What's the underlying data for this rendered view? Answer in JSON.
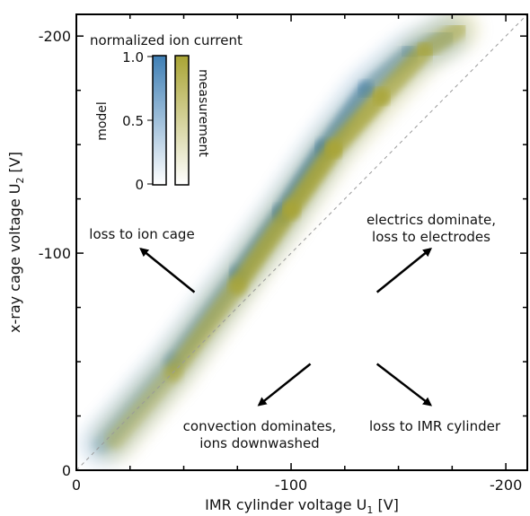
{
  "chart_data": {
    "type": "heatmap",
    "title": "",
    "xlabel": "IMR cylinder voltage U",
    "xlabel_sub": "1",
    "xlabel_unit": " [V]",
    "ylabel": "x-ray cage voltage U",
    "ylabel_sub": "2",
    "ylabel_unit": " [V]",
    "xlim": [
      0,
      -210
    ],
    "ylim": [
      0,
      -210
    ],
    "x_ticks": [
      0,
      -100,
      -200
    ],
    "y_ticks": [
      0,
      -100,
      -200
    ],
    "x_tick_labels": [
      "0",
      "-100",
      "-200"
    ],
    "y_tick_labels": [
      "0",
      "-100",
      "-200"
    ],
    "grid": false,
    "diagonal": {
      "x": [
        0,
        -210
      ],
      "y": [
        0,
        -210
      ],
      "style": "dashed",
      "color": "#9a9a9a"
    },
    "series": [
      {
        "name": "model",
        "color": "#3f7fb5",
        "ridge": [
          {
            "x": -12,
            "y": -12,
            "value": 0.05
          },
          {
            "x": -45,
            "y": -50,
            "value": 0.25
          },
          {
            "x": -75,
            "y": -90,
            "value": 0.55
          },
          {
            "x": -95,
            "y": -118,
            "value": 0.85
          },
          {
            "x": -115,
            "y": -148,
            "value": 0.9
          },
          {
            "x": -135,
            "y": -175,
            "value": 0.6
          },
          {
            "x": -155,
            "y": -192,
            "value": 0.3
          },
          {
            "x": -172,
            "y": -200,
            "value": 0.1
          }
        ]
      },
      {
        "name": "measurement",
        "color": "#a9a434",
        "ridge": [
          {
            "x": -18,
            "y": -14,
            "value": 0.1
          },
          {
            "x": -45,
            "y": -45,
            "value": 0.35
          },
          {
            "x": -75,
            "y": -85,
            "value": 0.7
          },
          {
            "x": -100,
            "y": -120,
            "value": 0.95
          },
          {
            "x": -120,
            "y": -148,
            "value": 0.9
          },
          {
            "x": -142,
            "y": -172,
            "value": 0.75
          },
          {
            "x": -162,
            "y": -193,
            "value": 0.55
          },
          {
            "x": -178,
            "y": -203,
            "value": 0.3
          }
        ]
      }
    ],
    "colorbar": {
      "title": "normalized ion current",
      "ticks": [
        "1.0",
        "0.5",
        "0"
      ],
      "tick_values": [
        1.0,
        0.5,
        0.0
      ],
      "labels": [
        "model",
        "measurement"
      ]
    },
    "annotations": [
      {
        "lines": [
          "loss to ion cage"
        ],
        "arrow_from": [
          -55,
          -82
        ],
        "arrow_to": [
          -30,
          -102
        ]
      },
      {
        "lines": [
          "electrics dominate,",
          "loss to electrodes"
        ],
        "arrow_from": [
          -140,
          -82
        ],
        "arrow_to": [
          -165,
          -102
        ]
      },
      {
        "lines": [
          "convection dominates,",
          "ions downwashed"
        ],
        "arrow_from": [
          -109,
          -49
        ],
        "arrow_to": [
          -85,
          -30
        ]
      },
      {
        "lines": [
          "loss to IMR cylinder"
        ],
        "arrow_from": [
          -140,
          -49
        ],
        "arrow_to": [
          -165,
          -30
        ]
      }
    ]
  }
}
